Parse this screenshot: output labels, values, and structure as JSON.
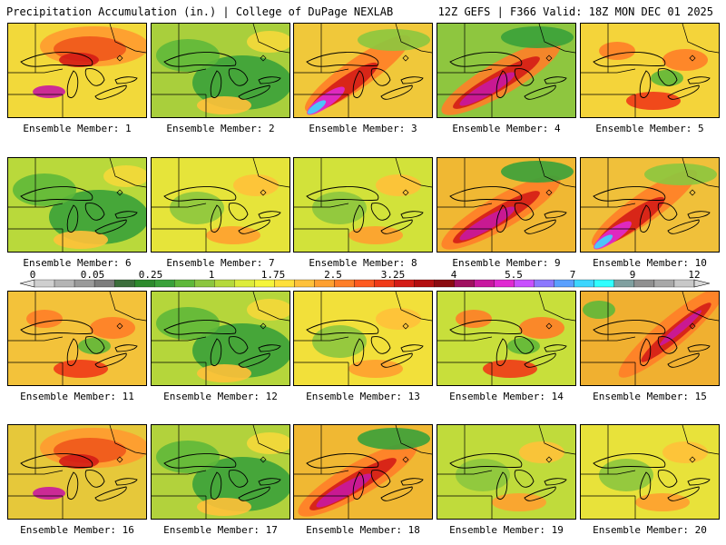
{
  "header": {
    "left": "Precipitation Accumulation (in.) | College of DuPage NEXLAB",
    "right": "12Z GEFS | F366 Valid: 18Z MON DEC 01 2025"
  },
  "map_type": "ensemble precipitation accumulation panels over the Great Lakes region",
  "colorbar": {
    "labels": [
      "0",
      "0.05",
      "0.25",
      "1",
      "1.75",
      "2.5",
      "3.25",
      "4",
      "5.5",
      "7",
      "9",
      "12"
    ],
    "colors": [
      "#cfcfcf",
      "#b4b4b4",
      "#9a9a9a",
      "#7d7d7d",
      "#3c6e3c",
      "#2e8b2e",
      "#3aa13a",
      "#5fb83a",
      "#8cc63f",
      "#b5d93b",
      "#ddec3a",
      "#f5f53a",
      "#ffe03a",
      "#ffc13a",
      "#ffa030",
      "#ff7e28",
      "#ff5a20",
      "#f03a18",
      "#d41c16",
      "#b30e10",
      "#8b0a10",
      "#a01060",
      "#c818a0",
      "#e02ad2",
      "#c850ff",
      "#8c78ff",
      "#5aa0ff",
      "#3cd6ff",
      "#30ffff",
      "#80a0a0",
      "#909090",
      "#a8a8a8",
      "#c8c8c8"
    ]
  },
  "members": [
    {
      "label": "Ensemble Member: 1",
      "base": "#f2d93a",
      "pattern": "ne_heavy"
    },
    {
      "label": "Ensemble Member: 2",
      "base": "#a9cf3c",
      "pattern": "dry_green"
    },
    {
      "label": "Ensemble Member: 3",
      "base": "#f0c83a",
      "pattern": "sw_band_cyan"
    },
    {
      "label": "Ensemble Member: 4",
      "base": "#8ec63f",
      "pattern": "sw_band_magenta"
    },
    {
      "label": "Ensemble Member: 5",
      "base": "#f4d43a",
      "pattern": "scattered_red"
    },
    {
      "label": "Ensemble Member: 6",
      "base": "#b9d93b",
      "pattern": "dry_green"
    },
    {
      "label": "Ensemble Member: 7",
      "base": "#e6e43a",
      "pattern": "light"
    },
    {
      "label": "Ensemble Member: 8",
      "base": "#d2e23a",
      "pattern": "light"
    },
    {
      "label": "Ensemble Member: 9",
      "base": "#f0b833",
      "pattern": "sw_band_magenta"
    },
    {
      "label": "Ensemble Member: 10",
      "base": "#f0c03a",
      "pattern": "sw_band_cyan"
    },
    {
      "label": "Ensemble Member: 11",
      "base": "#f3c23a",
      "pattern": "scattered_red"
    },
    {
      "label": "Ensemble Member: 12",
      "base": "#b5d63b",
      "pattern": "dry_green"
    },
    {
      "label": "Ensemble Member: 13",
      "base": "#f2e03a",
      "pattern": "light"
    },
    {
      "label": "Ensemble Member: 14",
      "base": "#c8df3b",
      "pattern": "scattered_red"
    },
    {
      "label": "Ensemble Member: 15",
      "base": "#f0b030",
      "pattern": "ne_band_magenta"
    },
    {
      "label": "Ensemble Member: 16",
      "base": "#e6c83a",
      "pattern": "ne_heavy"
    },
    {
      "label": "Ensemble Member: 17",
      "base": "#b2d23c",
      "pattern": "dry_green"
    },
    {
      "label": "Ensemble Member: 18",
      "base": "#f0b833",
      "pattern": "sw_band_magenta"
    },
    {
      "label": "Ensemble Member: 19",
      "base": "#c0db3b",
      "pattern": "light"
    },
    {
      "label": "Ensemble Member: 20",
      "base": "#e8e23a",
      "pattern": "light"
    }
  ]
}
